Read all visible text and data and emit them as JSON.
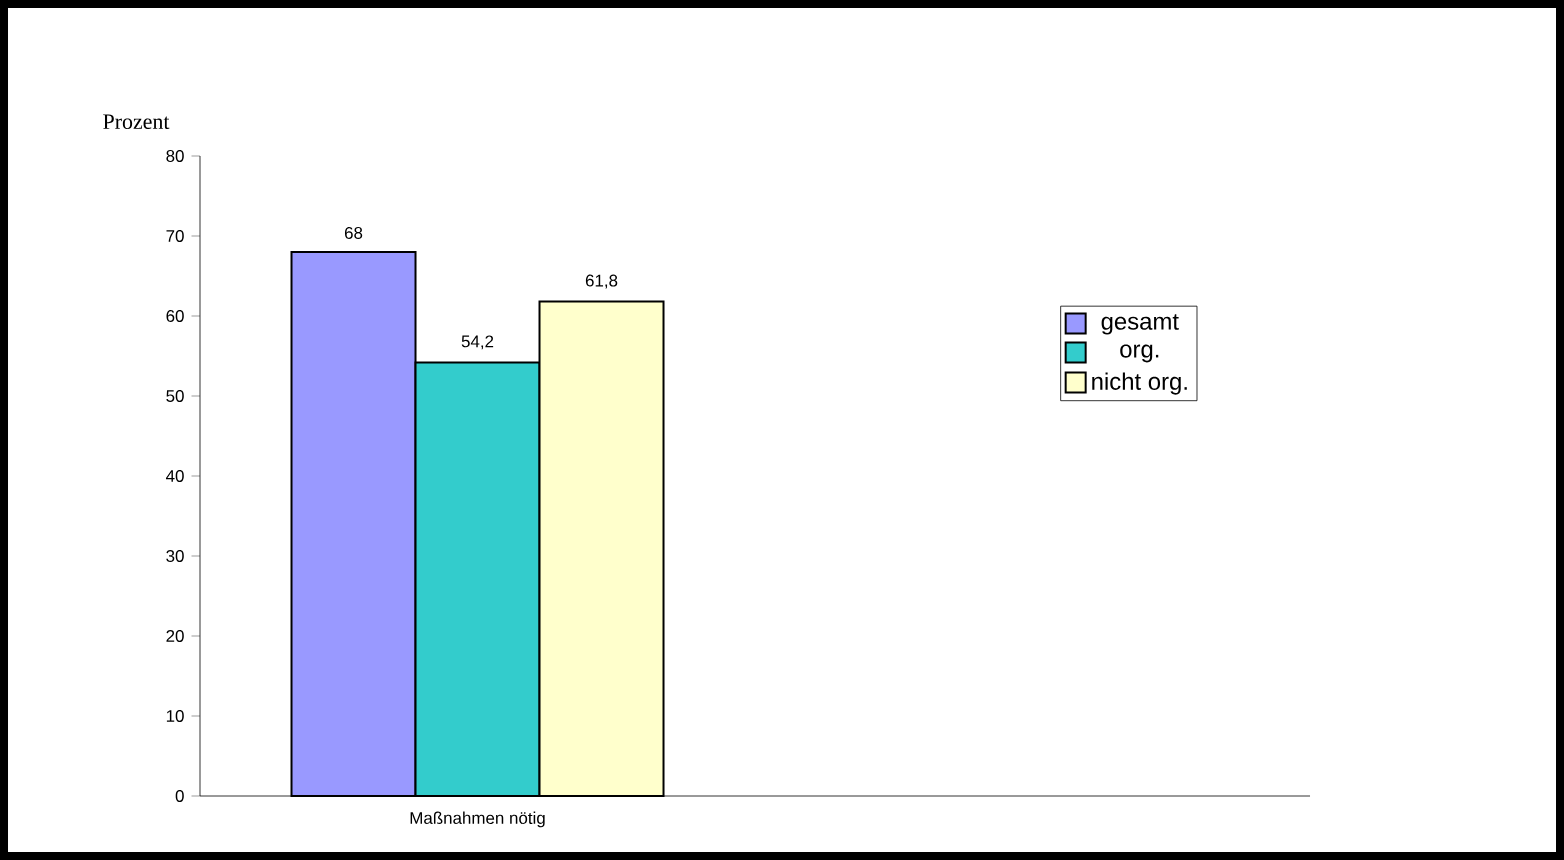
{
  "chart_data": {
    "type": "bar",
    "ylabel": "Prozent",
    "categories": [
      "Maßnahmen nötig",
      null
    ],
    "series": [
      {
        "name": "gesamt",
        "color": "#9999ff",
        "values": [
          68,
          null
        ],
        "value_labels": [
          "68",
          null
        ]
      },
      {
        "name": "org.",
        "color": "#33cccc",
        "values": [
          54.2,
          null
        ],
        "value_labels": [
          "54,2",
          null
        ]
      },
      {
        "name": "nicht org.",
        "color": "#ffffcc",
        "values": [
          61.8,
          null
        ],
        "value_labels": [
          "61,8",
          null
        ]
      }
    ],
    "ylim": [
      0,
      80
    ],
    "yticks": [
      0,
      10,
      20,
      30,
      40,
      50,
      60,
      70,
      80
    ],
    "grid": false,
    "legend": "right"
  }
}
